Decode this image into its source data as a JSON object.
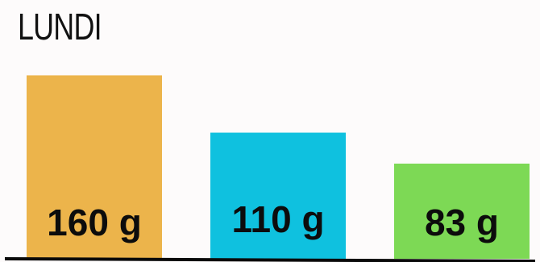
{
  "chart_data": {
    "type": "bar",
    "title": "LUNDI",
    "categories": [
      "",
      "",
      ""
    ],
    "values": [
      160,
      110,
      83
    ],
    "labels": [
      "160 g",
      "110 g",
      "83 g"
    ],
    "colors": [
      "#ecb44b",
      "#0fc1df",
      "#7dd955"
    ],
    "unit": "g",
    "ylim": [
      0,
      180
    ],
    "grid": false,
    "legend": "none"
  }
}
